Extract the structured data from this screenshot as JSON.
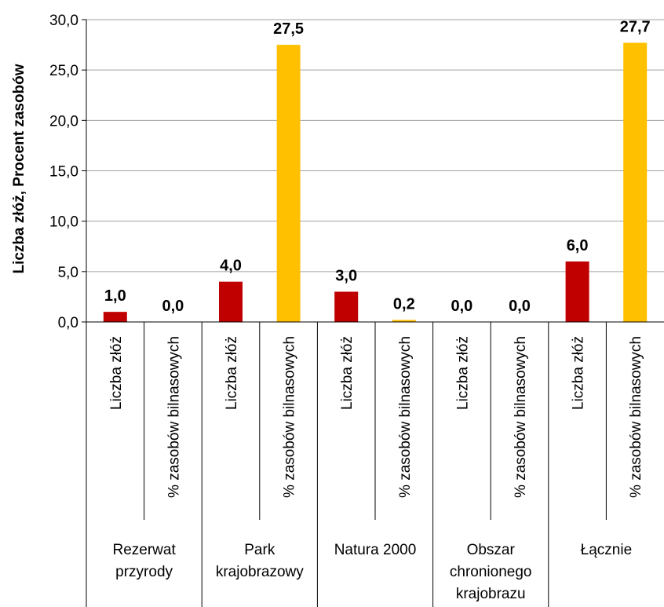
{
  "chart_data": {
    "type": "bar",
    "title": "",
    "ylabel": "Liczba złóż, Procent zasobów",
    "ylim": [
      0,
      30
    ],
    "y_ticks": [
      "0,0",
      "5,0",
      "10,0",
      "15,0",
      "20,0",
      "25,0",
      "30,0"
    ],
    "grid": true,
    "groups": [
      {
        "label": "Rezerwat przyrody",
        "label_lines": [
          "Rezerwat",
          "przyrody"
        ]
      },
      {
        "label": "Park krajobrazowy",
        "label_lines": [
          "Park",
          "krajobrazowy"
        ]
      },
      {
        "label": "Natura 2000",
        "label_lines": [
          "Natura 2000"
        ]
      },
      {
        "label": "Obszar chronionego krajobrazu",
        "label_lines": [
          "Obszar",
          "chronionego",
          "krajobrazu"
        ]
      },
      {
        "label": "Łącznie",
        "label_lines": [
          "Łącznie"
        ]
      }
    ],
    "bars": [
      {
        "group": 0,
        "category": "Liczba złóż",
        "value": 1.0,
        "label": "1,0",
        "color": "#c00000"
      },
      {
        "group": 0,
        "category": "% zasobów bilnasowych",
        "value": 0.0,
        "label": "0,0",
        "color": "#ffc000"
      },
      {
        "group": 1,
        "category": "Liczba złóż",
        "value": 4.0,
        "label": "4,0",
        "color": "#c00000"
      },
      {
        "group": 1,
        "category": "% zasobów bilnasowych",
        "value": 27.5,
        "label": "27,5",
        "color": "#ffc000"
      },
      {
        "group": 2,
        "category": "Liczba złóż",
        "value": 3.0,
        "label": "3,0",
        "color": "#c00000"
      },
      {
        "group": 2,
        "category": "% zasobów bilnasowych",
        "value": 0.2,
        "label": "0,2",
        "color": "#ffc000"
      },
      {
        "group": 3,
        "category": "Liczba złóż",
        "value": 0.0,
        "label": "0,0",
        "color": "#c00000"
      },
      {
        "group": 3,
        "category": "% zasobów bilnasowych",
        "value": 0.0,
        "label": "0,0",
        "color": "#ffc000"
      },
      {
        "group": 4,
        "category": "Liczba złóż",
        "value": 6.0,
        "label": "6,0",
        "color": "#c00000"
      },
      {
        "group": 4,
        "category": "% zasobów bilnasowych",
        "value": 27.7,
        "label": "27,7",
        "color": "#ffc000"
      }
    ],
    "colors": {
      "liczba": "#c00000",
      "procent": "#ffc000",
      "grid": "#a0a0a0",
      "axis": "#000000"
    }
  }
}
